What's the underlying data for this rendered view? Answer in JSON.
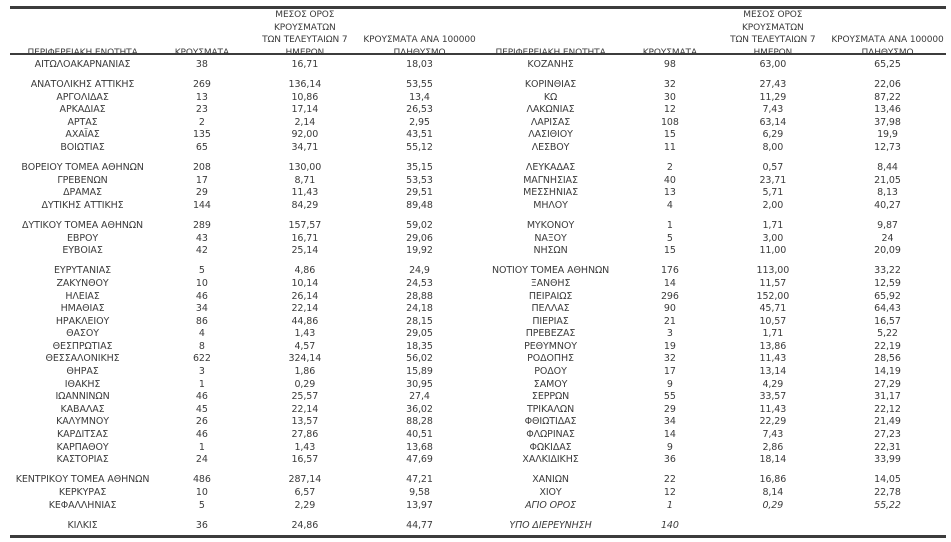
{
  "colors": {
    "text": "#3b3b3b",
    "rule": "#3c3c3c",
    "background": "#ffffff"
  },
  "headers": {
    "region": "ΠΕΡΙΦΕΡΕΙΑΚΗ ΕΝΟΤΗΤΑ",
    "cases": "ΚΡΟΥΣΜΑΤΑ",
    "avg7": "ΜΕΣΟΣ ΟΡΟΣ ΚΡΟΥΣΜΑΤΩΝ\nΤΩΝ ΤΕΛΕΥΤΑΙΩΝ 7\nΗΜΕΡΩΝ",
    "per100k": "ΚΡΟΥΣΜΑΤΑ ΑΝΑ 100000\nΠΛΗΘΥΣΜΟ"
  },
  "left_table": {
    "groups": [
      [
        {
          "region": "ΑΙΤΩΛΟΑΚΑΡΝΑΝΙΑΣ",
          "cases": "38",
          "avg7": "16,71",
          "per100k": "18,03"
        }
      ],
      [
        {
          "region": "ΑΝΑΤΟΛΙΚΗΣ ΑΤΤΙΚΗΣ",
          "cases": "269",
          "avg7": "136,14",
          "per100k": "53,55"
        },
        {
          "region": "ΑΡΓΟΛΙΔΑΣ",
          "cases": "13",
          "avg7": "10,86",
          "per100k": "13,4"
        },
        {
          "region": "ΑΡΚΑΔΙΑΣ",
          "cases": "23",
          "avg7": "17,14",
          "per100k": "26,53"
        },
        {
          "region": "ΑΡΤΑΣ",
          "cases": "2",
          "avg7": "2,14",
          "per100k": "2,95"
        },
        {
          "region": "ΑΧΑΪΑΣ",
          "cases": "135",
          "avg7": "92,00",
          "per100k": "43,51"
        },
        {
          "region": "ΒΟΙΩΤΙΑΣ",
          "cases": "65",
          "avg7": "34,71",
          "per100k": "55,12"
        }
      ],
      [
        {
          "region": "ΒΟΡΕΙΟΥ ΤΟΜΕΑ ΑΘΗΝΩΝ",
          "cases": "208",
          "avg7": "130,00",
          "per100k": "35,15"
        },
        {
          "region": "ΓΡΕΒΕΝΩΝ",
          "cases": "17",
          "avg7": "8,71",
          "per100k": "53,53"
        },
        {
          "region": "ΔΡΑΜΑΣ",
          "cases": "29",
          "avg7": "11,43",
          "per100k": "29,51"
        },
        {
          "region": "ΔΥΤΙΚΗΣ ΑΤΤΙΚΗΣ",
          "cases": "144",
          "avg7": "84,29",
          "per100k": "89,48"
        }
      ],
      [
        {
          "region": "ΔΥΤΙΚΟΥ ΤΟΜΕΑ ΑΘΗΝΩΝ",
          "cases": "289",
          "avg7": "157,57",
          "per100k": "59,02"
        },
        {
          "region": "ΕΒΡΟΥ",
          "cases": "43",
          "avg7": "16,71",
          "per100k": "29,06"
        },
        {
          "region": "ΕΥΒΟΙΑΣ",
          "cases": "42",
          "avg7": "25,14",
          "per100k": "19,92"
        }
      ],
      [
        {
          "region": "ΕΥΡΥΤΑΝΙΑΣ",
          "cases": "5",
          "avg7": "4,86",
          "per100k": "24,9"
        },
        {
          "region": "ΖΑΚΥΝΘΟΥ",
          "cases": "10",
          "avg7": "10,14",
          "per100k": "24,53"
        },
        {
          "region": "ΗΛΕΙΑΣ",
          "cases": "46",
          "avg7": "26,14",
          "per100k": "28,88"
        },
        {
          "region": "ΗΜΑΘΙΑΣ",
          "cases": "34",
          "avg7": "22,14",
          "per100k": "24,18"
        },
        {
          "region": "ΗΡΑΚΛΕΙΟΥ",
          "cases": "86",
          "avg7": "44,86",
          "per100k": "28,15"
        },
        {
          "region": "ΘΑΣΟΥ",
          "cases": "4",
          "avg7": "1,43",
          "per100k": "29,05"
        },
        {
          "region": "ΘΕΣΠΡΩΤΙΑΣ",
          "cases": "8",
          "avg7": "4,57",
          "per100k": "18,35"
        },
        {
          "region": "ΘΕΣΣΑΛΟΝΙΚΗΣ",
          "cases": "622",
          "avg7": "324,14",
          "per100k": "56,02"
        },
        {
          "region": "ΘΗΡΑΣ",
          "cases": "3",
          "avg7": "1,86",
          "per100k": "15,89"
        },
        {
          "region": "ΙΘΑΚΗΣ",
          "cases": "1",
          "avg7": "0,29",
          "per100k": "30,95"
        },
        {
          "region": "ΙΩΑΝΝΙΝΩΝ",
          "cases": "46",
          "avg7": "25,57",
          "per100k": "27,4"
        },
        {
          "region": "ΚΑΒΑΛΑΣ",
          "cases": "45",
          "avg7": "22,14",
          "per100k": "36,02"
        },
        {
          "region": "ΚΑΛΥΜΝΟΥ",
          "cases": "26",
          "avg7": "13,57",
          "per100k": "88,28"
        },
        {
          "region": "ΚΑΡΔΙΤΣΑΣ",
          "cases": "46",
          "avg7": "27,86",
          "per100k": "40,51"
        },
        {
          "region": "ΚΑΡΠΑΘΟΥ",
          "cases": "1",
          "avg7": "1,43",
          "per100k": "13,68"
        },
        {
          "region": "ΚΑΣΤΟΡΙΑΣ",
          "cases": "24",
          "avg7": "16,57",
          "per100k": "47,69"
        }
      ],
      [
        {
          "region": "ΚΕΝΤΡΙΚΟΥ ΤΟΜΕΑ ΑΘΗΝΩΝ",
          "cases": "486",
          "avg7": "287,14",
          "per100k": "47,21"
        },
        {
          "region": "ΚΕΡΚΥΡΑΣ",
          "cases": "10",
          "avg7": "6,57",
          "per100k": "9,58"
        },
        {
          "region": "ΚΕΦΑΛΛΗΝΙΑΣ",
          "cases": "5",
          "avg7": "2,29",
          "per100k": "13,97"
        }
      ],
      [
        {
          "region": "ΚΙΛΚΙΣ",
          "cases": "36",
          "avg7": "24,86",
          "per100k": "44,77"
        }
      ]
    ]
  },
  "right_table": {
    "groups": [
      [
        {
          "region": "ΚΟΖΑΝΗΣ",
          "cases": "98",
          "avg7": "63,00",
          "per100k": "65,25"
        }
      ],
      [
        {
          "region": "ΚΟΡΙΝΘΙΑΣ",
          "cases": "32",
          "avg7": "27,43",
          "per100k": "22,06"
        },
        {
          "region": "ΚΩ",
          "cases": "30",
          "avg7": "11,29",
          "per100k": "87,22"
        },
        {
          "region": "ΛΑΚΩΝΙΑΣ",
          "cases": "12",
          "avg7": "7,43",
          "per100k": "13,46"
        },
        {
          "region": "ΛΑΡΙΣΑΣ",
          "cases": "108",
          "avg7": "63,14",
          "per100k": "37,98"
        },
        {
          "region": "ΛΑΣΙΘΙΟΥ",
          "cases": "15",
          "avg7": "6,29",
          "per100k": "19,9"
        },
        {
          "region": "ΛΕΣΒΟΥ",
          "cases": "11",
          "avg7": "8,00",
          "per100k": "12,73"
        }
      ],
      [
        {
          "region": "ΛΕΥΚΑΔΑΣ",
          "cases": "2",
          "avg7": "0,57",
          "per100k": "8,44"
        },
        {
          "region": "ΜΑΓΝΗΣΙΑΣ",
          "cases": "40",
          "avg7": "23,71",
          "per100k": "21,05"
        },
        {
          "region": "ΜΕΣΣΗΝΙΑΣ",
          "cases": "13",
          "avg7": "5,71",
          "per100k": "8,13"
        },
        {
          "region": "ΜΗΛΟΥ",
          "cases": "4",
          "avg7": "2,00",
          "per100k": "40,27"
        }
      ],
      [
        {
          "region": "ΜΥΚΟΝΟΥ",
          "cases": "1",
          "avg7": "1,71",
          "per100k": "9,87"
        },
        {
          "region": "ΝΑΞΟΥ",
          "cases": "5",
          "avg7": "3,00",
          "per100k": "24"
        },
        {
          "region": "ΝΗΣΩΝ",
          "cases": "15",
          "avg7": "11,00",
          "per100k": "20,09"
        }
      ],
      [
        {
          "region": "ΝΟΤΙΟΥ ΤΟΜΕΑ ΑΘΗΝΩΝ",
          "cases": "176",
          "avg7": "113,00",
          "per100k": "33,22"
        },
        {
          "region": "ΞΑΝΘΗΣ",
          "cases": "14",
          "avg7": "11,57",
          "per100k": "12,59"
        },
        {
          "region": "ΠΕΙΡΑΙΩΣ",
          "cases": "296",
          "avg7": "152,00",
          "per100k": "65,92"
        },
        {
          "region": "ΠΕΛΛΑΣ",
          "cases": "90",
          "avg7": "45,71",
          "per100k": "64,43"
        },
        {
          "region": "ΠΙΕΡΙΑΣ",
          "cases": "21",
          "avg7": "10,57",
          "per100k": "16,57"
        },
        {
          "region": "ΠΡΕΒΕΖΑΣ",
          "cases": "3",
          "avg7": "1,71",
          "per100k": "5,22"
        },
        {
          "region": "ΡΕΘΥΜΝΟΥ",
          "cases": "19",
          "avg7": "13,86",
          "per100k": "22,19"
        },
        {
          "region": "ΡΟΔΟΠΗΣ",
          "cases": "32",
          "avg7": "11,43",
          "per100k": "28,56"
        },
        {
          "region": "ΡΟΔΟΥ",
          "cases": "17",
          "avg7": "13,14",
          "per100k": "14,19"
        },
        {
          "region": "ΣΑΜΟΥ",
          "cases": "9",
          "avg7": "4,29",
          "per100k": "27,29"
        },
        {
          "region": "ΣΕΡΡΩΝ",
          "cases": "55",
          "avg7": "33,57",
          "per100k": "31,17"
        },
        {
          "region": "ΤΡΙΚΑΛΩΝ",
          "cases": "29",
          "avg7": "11,43",
          "per100k": "22,12"
        },
        {
          "region": "ΦΘΙΩΤΙΔΑΣ",
          "cases": "34",
          "avg7": "22,29",
          "per100k": "21,49"
        },
        {
          "region": "ΦΛΩΡΙΝΑΣ",
          "cases": "14",
          "avg7": "7,43",
          "per100k": "27,23"
        },
        {
          "region": "ΦΩΚΙΔΑΣ",
          "cases": "9",
          "avg7": "2,86",
          "per100k": "22,31"
        },
        {
          "region": "ΧΑΛΚΙΔΙΚΗΣ",
          "cases": "36",
          "avg7": "18,14",
          "per100k": "33,99"
        }
      ],
      [
        {
          "region": "ΧΑΝΙΩΝ",
          "cases": "22",
          "avg7": "16,86",
          "per100k": "14,05"
        },
        {
          "region": "ΧΙΟΥ",
          "cases": "12",
          "avg7": "8,14",
          "per100k": "22,78"
        },
        {
          "region": "ΑΓΙΟ ΟΡΟΣ",
          "cases": "1",
          "avg7": "0,29",
          "per100k": "55,22",
          "italic": true
        }
      ],
      [
        {
          "region": "ΥΠΟ ΔΙΕΡΕΥΝΗΣΗ",
          "cases": "140",
          "avg7": "",
          "per100k": "",
          "italic": true
        }
      ]
    ]
  }
}
